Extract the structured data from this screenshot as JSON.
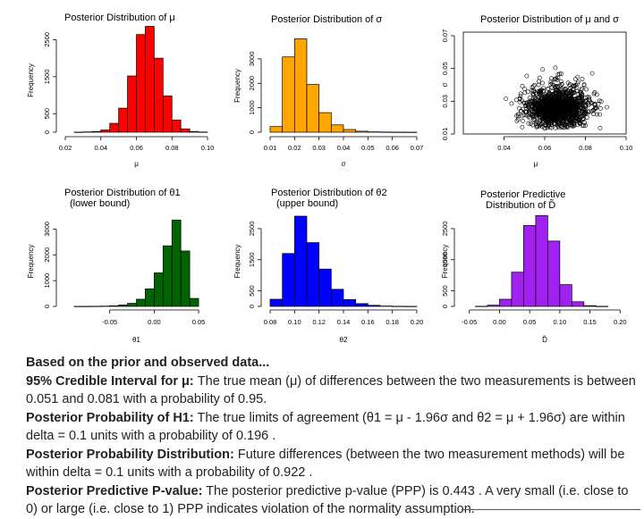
{
  "chart_data": [
    {
      "type": "bar",
      "title": "Posterior Distribution of μ",
      "xlabel": "μ",
      "ylabel": "Frequency",
      "color": "#ff0000",
      "xlim": [
        0.02,
        0.1
      ],
      "ylim": [
        0,
        2800
      ],
      "xticks": [
        "0.02",
        "0.04",
        "0.06",
        "0.08",
        "0.10"
      ],
      "yticks": [
        "0",
        "500",
        "1500",
        "2500"
      ],
      "bin_width": 0.005,
      "bin_starts": [
        0.025,
        0.03,
        0.035,
        0.04,
        0.045,
        0.05,
        0.055,
        0.06,
        0.065,
        0.07,
        0.075,
        0.08,
        0.085,
        0.09,
        0.095
      ],
      "values": [
        3,
        8,
        20,
        60,
        240,
        650,
        1520,
        2640,
        2860,
        2000,
        980,
        330,
        90,
        20,
        5
      ]
    },
    {
      "type": "bar",
      "title": "Posterior Distribution of σ",
      "xlabel": "σ",
      "ylabel": "Frequency",
      "color": "#ffa500",
      "xlim": [
        0.01,
        0.07
      ],
      "ylim": [
        0,
        3800
      ],
      "xticks": [
        "0.01",
        "0.02",
        "0.03",
        "0.04",
        "0.05",
        "0.06",
        "0.07"
      ],
      "yticks": [
        "0",
        "1000",
        "2000",
        "3000"
      ],
      "bin_width": 0.005,
      "bin_starts": [
        0.01,
        0.015,
        0.02,
        0.025,
        0.03,
        0.035,
        0.04,
        0.045,
        0.05,
        0.055,
        0.06,
        0.065
      ],
      "values": [
        230,
        3080,
        3820,
        1950,
        800,
        300,
        110,
        40,
        15,
        8,
        4,
        2
      ]
    },
    {
      "type": "scatter",
      "title": "Posterior Distribution of μ and σ",
      "xlabel": "μ",
      "ylabel": "σ",
      "xlim": [
        0.02,
        0.1
      ],
      "ylim": [
        0.01,
        0.07
      ],
      "xticks": [
        "0.04",
        "0.06",
        "0.08",
        "0.10"
      ],
      "yticks": [
        "0.01",
        "0.03",
        "0.05",
        "0.07"
      ],
      "points_note": "≈10000 posterior draws, μ centred at 0.066, σ centred at 0.024"
    },
    {
      "type": "bar",
      "title": "Posterior Distribution of θ1",
      "subtitle": "(lower bound)",
      "xlabel": "θ1",
      "ylabel": "Frequency",
      "color": "#006400",
      "xlim": [
        -0.1,
        0.06
      ],
      "ylim": [
        0,
        3500
      ],
      "xticks": [
        "-0.05",
        "0.00",
        "0.05"
      ],
      "yticks": [
        "0",
        "1000",
        "2000",
        "3000"
      ],
      "bin_width": 0.01,
      "bin_starts": [
        -0.09,
        -0.08,
        -0.07,
        -0.06,
        -0.05,
        -0.04,
        -0.03,
        -0.02,
        -0.01,
        0.0,
        0.01,
        0.02,
        0.03,
        0.04
      ],
      "values": [
        2,
        3,
        6,
        12,
        25,
        55,
        120,
        280,
        680,
        1300,
        2350,
        3350,
        2150,
        310
      ]
    },
    {
      "type": "bar",
      "title": "Posterior Distribution of θ2",
      "subtitle": "(upper bound)",
      "xlabel": "θ2",
      "ylabel": "Frequency",
      "color": "#0000ff",
      "xlim": [
        0.08,
        0.2
      ],
      "ylim": [
        0,
        2900
      ],
      "xticks": [
        "0.08",
        "0.10",
        "0.12",
        "0.14",
        "0.16",
        "0.18",
        "0.20"
      ],
      "yticks": [
        "0",
        "500",
        "1500",
        "2500"
      ],
      "bin_width": 0.01,
      "bin_starts": [
        0.08,
        0.09,
        0.1,
        0.11,
        0.12,
        0.13,
        0.14,
        0.15,
        0.16,
        0.17,
        0.18,
        0.19
      ],
      "values": [
        230,
        1700,
        2900,
        2050,
        1200,
        550,
        220,
        90,
        35,
        12,
        4,
        2
      ]
    },
    {
      "type": "bar",
      "title": "Posterior Predictive",
      "subtitle": "Distribution of D̃",
      "xlabel": "D̃",
      "ylabel": "Frequency",
      "color": "#a020f0",
      "xlim": [
        -0.06,
        0.21
      ],
      "ylim": [
        0,
        2900
      ],
      "xticks": [
        "-0.05",
        "0.00",
        "0.05",
        "0.10",
        "0.15",
        "0.20"
      ],
      "yticks": [
        "0",
        "500",
        "1500",
        "2500"
      ],
      "bin_width": 0.02,
      "bin_starts": [
        -0.04,
        -0.02,
        0.0,
        0.02,
        0.04,
        0.06,
        0.08,
        0.1,
        0.12,
        0.14,
        0.16
      ],
      "values": [
        5,
        40,
        230,
        1100,
        2600,
        2920,
        2100,
        700,
        150,
        25,
        3
      ]
    }
  ],
  "summary": {
    "intro": "Based on the prior and observed data...",
    "ci_label": "95% Credible Interval for μ:",
    "ci_text": " The true mean (μ) of differences between the two measurements is between 0.051 and 0.081 with a probability of 0.95.",
    "h1_label": "Posterior Probability of H1:",
    "h1_text": " The true limits of agreement (θ1 = μ - 1.96σ and θ2 = μ + 1.96σ) are within delta = 0.1 units with a probability of 0.196 .",
    "ppd_label": "Posterior Probability Distribution:",
    "ppd_text": " Future differences (between the two measurement methods) will be within delta = 0.1 units with a probability of 0.922 .",
    "ppp_label": "Posterior Predictive P-value:",
    "ppp_text": " The posterior predictive p-value (PPP) is 0.443 . A very small (i.e. close to 0) or large (i.e. close to 1) PPP indicates violation of the normality assumption."
  }
}
